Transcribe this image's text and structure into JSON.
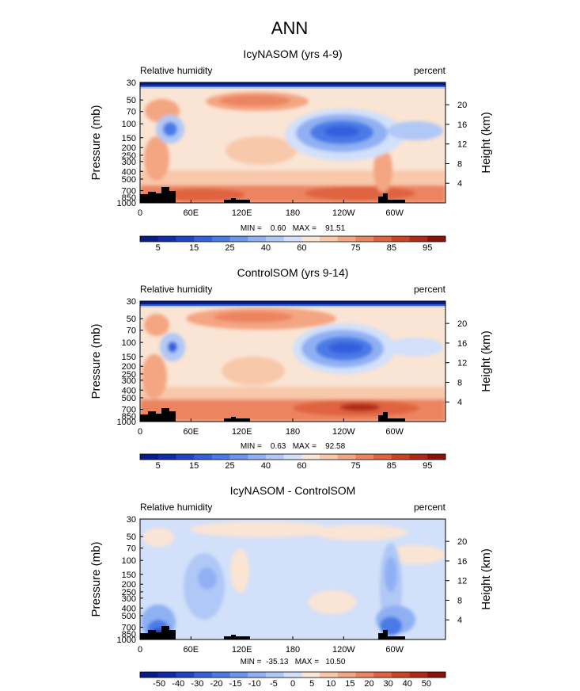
{
  "chart_data": [
    {
      "type": "heatmap",
      "title": "IcyNASOM (yrs 4-9)",
      "variable": "Relative humidity",
      "units": "percent",
      "ylabel": "Pressure (mb)",
      "ylabel_right": "Height (km)",
      "x_ticks": [
        "0",
        "60E",
        "120E",
        "180",
        "120W",
        "60W"
      ],
      "y_ticks": [
        "30",
        "50",
        "70",
        "100",
        "150",
        "200",
        "250",
        "300",
        "400",
        "500",
        "700",
        "850",
        "1000"
      ],
      "height_ticks": [
        "20",
        "16",
        "12",
        "8",
        "4"
      ],
      "stats": "MIN =    0.60   MAX =    91.51",
      "min": 0.6,
      "max": 91.51,
      "colorbar_labels": [
        "5",
        "15",
        "25",
        "40",
        "60",
        "75",
        "85",
        "95"
      ],
      "colorbar_levels": [
        0,
        5,
        10,
        15,
        20,
        25,
        30,
        40,
        50,
        60,
        65,
        70,
        75,
        80,
        85,
        90,
        95,
        100
      ]
    },
    {
      "type": "heatmap",
      "title": "ControlSOM (yrs 9-14)",
      "variable": "Relative humidity",
      "units": "percent",
      "ylabel": "Pressure (mb)",
      "ylabel_right": "Height (km)",
      "x_ticks": [
        "0",
        "60E",
        "120E",
        "180",
        "120W",
        "60W"
      ],
      "y_ticks": [
        "30",
        "50",
        "70",
        "100",
        "150",
        "200",
        "250",
        "300",
        "400",
        "500",
        "700",
        "850",
        "1000"
      ],
      "height_ticks": [
        "20",
        "16",
        "12",
        "8",
        "4"
      ],
      "stats": "MIN =    0.63   MAX =    92.58",
      "min": 0.63,
      "max": 92.58,
      "colorbar_labels": [
        "5",
        "15",
        "25",
        "40",
        "60",
        "75",
        "85",
        "95"
      ],
      "colorbar_levels": [
        0,
        5,
        10,
        15,
        20,
        25,
        30,
        40,
        50,
        60,
        65,
        70,
        75,
        80,
        85,
        90,
        95,
        100
      ]
    },
    {
      "type": "heatmap",
      "title": "IcyNASOM - ControlSOM",
      "variable": "Relative humidity",
      "units": "percent",
      "ylabel": "Pressure (mb)",
      "ylabel_right": "Height (km)",
      "x_ticks": [
        "0",
        "60E",
        "120E",
        "180",
        "120W",
        "60W"
      ],
      "y_ticks": [
        "30",
        "50",
        "70",
        "100",
        "150",
        "200",
        "250",
        "300",
        "400",
        "500",
        "700",
        "850",
        "1000"
      ],
      "height_ticks": [
        "20",
        "16",
        "12",
        "8",
        "4"
      ],
      "stats": "MIN =  -35.13   MAX =   10.50",
      "min": -35.13,
      "max": 10.5,
      "colorbar_labels": [
        "-50",
        "-40",
        "-30",
        "-20",
        "-15",
        "-10",
        "-5",
        "0",
        "5",
        "10",
        "15",
        "20",
        "30",
        "40",
        "50"
      ],
      "colorbar_levels": [
        -60,
        -50,
        -40,
        -30,
        -20,
        -15,
        -10,
        -5,
        0,
        5,
        10,
        15,
        20,
        30,
        40,
        50,
        60
      ]
    }
  ],
  "figure": {
    "title": "ANN",
    "colormap": [
      "#081d8a",
      "#102ca8",
      "#1f44c6",
      "#3360dc",
      "#4a7ae6",
      "#6c96ee",
      "#8fb0f3",
      "#b0c8f6",
      "#d2e0fa",
      "#fae4d4",
      "#f8c8aa",
      "#f4a582",
      "#ec8460",
      "#df6340",
      "#cc4424",
      "#b02a14",
      "#8a1208"
    ]
  }
}
